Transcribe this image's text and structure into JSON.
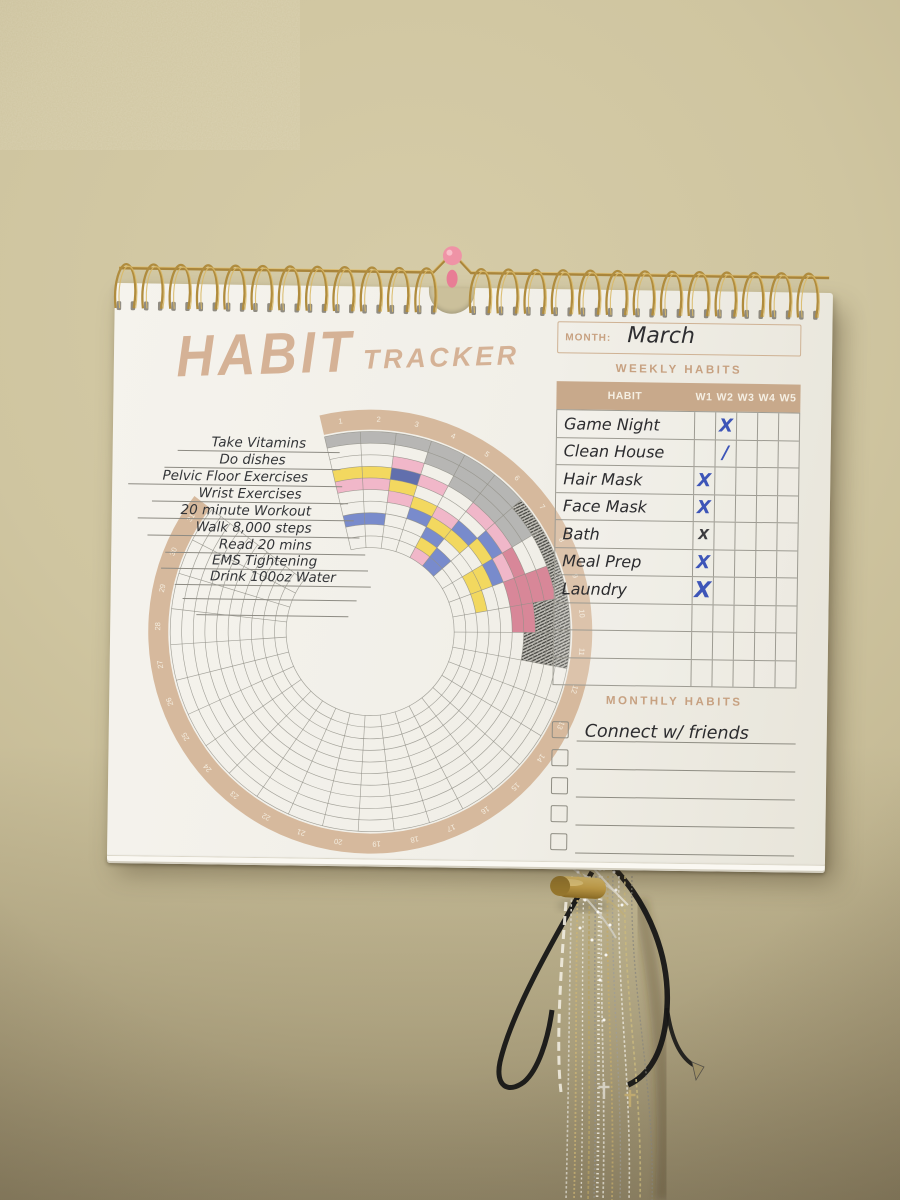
{
  "title": {
    "word1": "HABIT",
    "word2": "TRACKER"
  },
  "habit_list": [
    "Take Vitamins",
    "Do dishes",
    "Pelvic Floor Exercises",
    "Wrist Exercises",
    "20 minute Workout",
    "Walk 8,000 steps",
    "Read 20 mins",
    "EMS Tightening",
    "Drink 100oz Water"
  ],
  "month": {
    "label": "MONTH:",
    "value": "March"
  },
  "weekly": {
    "title": "WEEKLY HABITS",
    "columns": [
      "HABIT",
      "W1",
      "W2",
      "W3",
      "W4",
      "W5"
    ],
    "rows": [
      {
        "name": "Game Night",
        "marks": [
          {
            "week": 2,
            "symbol": "X",
            "pen": "blue",
            "size": "md"
          }
        ]
      },
      {
        "name": "Clean House",
        "marks": [
          {
            "week": 2,
            "symbol": "/",
            "pen": "blue",
            "size": "md"
          }
        ]
      },
      {
        "name": "Hair Mask",
        "marks": [
          {
            "week": 1,
            "symbol": "X",
            "pen": "blue",
            "size": "md"
          }
        ]
      },
      {
        "name": "Face Mask",
        "marks": [
          {
            "week": 1,
            "symbol": "X",
            "pen": "blue",
            "size": "md"
          }
        ]
      },
      {
        "name": "Bath",
        "marks": [
          {
            "week": 1,
            "symbol": "X",
            "pen": "black",
            "size": "sm"
          }
        ]
      },
      {
        "name": "Meal Prep",
        "marks": [
          {
            "week": 1,
            "symbol": "X",
            "pen": "blue",
            "size": "md"
          }
        ]
      },
      {
        "name": "Laundry",
        "marks": [
          {
            "week": 1,
            "symbol": "X",
            "pen": "blue",
            "size": "lg"
          }
        ]
      },
      {
        "name": "",
        "marks": []
      },
      {
        "name": "",
        "marks": []
      },
      {
        "name": "",
        "marks": []
      }
    ]
  },
  "monthly": {
    "title": "MONTHLY HABITS",
    "items": [
      "Connect w/ friends",
      "",
      "",
      "",
      ""
    ]
  },
  "radial_tracker": {
    "days": 31,
    "rings": 10,
    "ring_color": "#d6b99d",
    "palette": {
      "gray": "#a8a8a6",
      "hatch": "#55554f",
      "yellow": "#f2d23c",
      "pink": "#f0a9c0",
      "red": "#d26d85",
      "blue": "#5a72c4",
      "navy": "#3c4f9e"
    },
    "cells": [
      [
        1,
        1,
        "gray"
      ],
      [
        2,
        1,
        "gray"
      ],
      [
        3,
        1,
        "gray"
      ],
      [
        4,
        1,
        "gray"
      ],
      [
        5,
        1,
        "gray"
      ],
      [
        6,
        1,
        "gray"
      ],
      [
        4,
        2,
        "gray"
      ],
      [
        5,
        2,
        "gray"
      ],
      [
        6,
        2,
        "gray"
      ],
      [
        5,
        3,
        "gray"
      ],
      [
        6,
        3,
        "gray"
      ],
      [
        7,
        2,
        "gray"
      ],
      [
        7,
        3,
        "gray"
      ],
      [
        7,
        1,
        "hatch"
      ],
      [
        8,
        1,
        "hatch"
      ],
      [
        9,
        1,
        "hatch"
      ],
      [
        10,
        1,
        "hatch"
      ],
      [
        11,
        1,
        "hatch"
      ],
      [
        10,
        2,
        "hatch"
      ],
      [
        11,
        2,
        "hatch"
      ],
      [
        10,
        3,
        "hatch"
      ],
      [
        11,
        3,
        "hatch"
      ],
      [
        11,
        4,
        "hatch"
      ],
      [
        1,
        4,
        "yellow"
      ],
      [
        2,
        4,
        "yellow"
      ],
      [
        3,
        5,
        "yellow"
      ],
      [
        4,
        6,
        "yellow"
      ],
      [
        5,
        7,
        "yellow"
      ],
      [
        6,
        7,
        "yellow"
      ],
      [
        7,
        6,
        "yellow"
      ],
      [
        8,
        7,
        "yellow"
      ],
      [
        8,
        8,
        "yellow"
      ],
      [
        9,
        8,
        "yellow"
      ],
      [
        5,
        9,
        "yellow"
      ],
      [
        1,
        5,
        "pink"
      ],
      [
        2,
        5,
        "pink"
      ],
      [
        3,
        3,
        "pink"
      ],
      [
        3,
        6,
        "pink"
      ],
      [
        4,
        4,
        "pink"
      ],
      [
        5,
        6,
        "pink"
      ],
      [
        6,
        4,
        "pink"
      ],
      [
        7,
        4,
        "pink"
      ],
      [
        8,
        5,
        "pink"
      ],
      [
        5,
        10,
        "pink"
      ],
      [
        9,
        2,
        "red"
      ],
      [
        8,
        4,
        "red"
      ],
      [
        9,
        3,
        "red"
      ],
      [
        9,
        4,
        "red"
      ],
      [
        9,
        5,
        "red"
      ],
      [
        10,
        4,
        "red"
      ],
      [
        10,
        5,
        "red"
      ],
      [
        1,
        8,
        "blue"
      ],
      [
        2,
        8,
        "blue"
      ],
      [
        3,
        4,
        "navy"
      ],
      [
        4,
        7,
        "blue"
      ],
      [
        5,
        8,
        "blue"
      ],
      [
        6,
        6,
        "blue"
      ],
      [
        7,
        5,
        "blue"
      ],
      [
        8,
        6,
        "blue"
      ],
      [
        6,
        9,
        "blue"
      ],
      [
        6,
        10,
        "blue"
      ]
    ]
  },
  "colors": {
    "accent_tan": "#c8a98b",
    "pen_blue": "#3d55b8",
    "ink": "#333538",
    "wall": "#cbc09b",
    "paper": "#f1efe8",
    "binding_gold": "#a9853b",
    "pin_pink": "#ef93a6"
  }
}
